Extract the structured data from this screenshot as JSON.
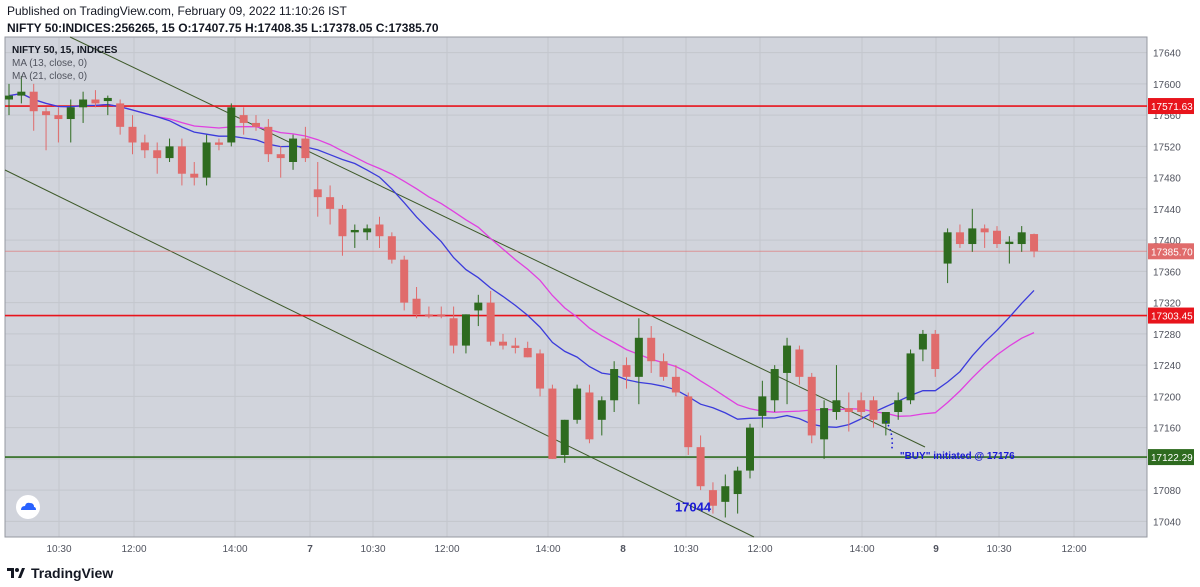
{
  "header": {
    "published": "Published on TradingView.com, February 09, 2022 11:10:26 IST",
    "symbol": "NIFTY 50:INDICES:256265, 15",
    "o_label": "O:",
    "o_value": "17407.75",
    "h_label": "H:",
    "h_value": "17408.35",
    "l_label": "L:",
    "l_value": "17378.05",
    "c_label": "C:",
    "c_value": "17385.70"
  },
  "legend": {
    "title": "NIFTY 50, 15, INDICES",
    "ma13": "MA (13, close, 0)",
    "ma21": "MA (21, close, 0)"
  },
  "footer": {
    "brand": "TradingView"
  },
  "colors": {
    "background": "#d1d4dc",
    "up": "#2e6b1f",
    "down": "#e06b6b",
    "ma13": "#3b3bdb",
    "ma21": "#e040e0",
    "hline_red": "#e8141c",
    "hline_green": "#2e6b1f",
    "channel": "#3e5a2a",
    "annotation": "#1a1ad6"
  },
  "chart_data": {
    "type": "candlestick",
    "title": "NIFTY 50, 15, INDICES",
    "ylim": [
      17020,
      17660
    ],
    "y_ticks": [
      17040,
      17080,
      17120,
      17160,
      17200,
      17240,
      17280,
      17320,
      17360,
      17400,
      17440,
      17480,
      17520,
      17560,
      17600,
      17640
    ],
    "x_ticks": [
      "10:30",
      "12:00",
      "14:00",
      "7",
      "10:30",
      "12:00",
      "14:00",
      "8",
      "10:30",
      "12:00",
      "14:00",
      "9",
      "10:30",
      "12:00"
    ],
    "grid": true,
    "horizontal_levels": [
      {
        "value": 17571.63,
        "label": "17571.63",
        "color": "#e8141c"
      },
      {
        "value": 17385.7,
        "label": "17385.70",
        "color": "#e06b6b"
      },
      {
        "value": 17303.45,
        "label": "17303.45",
        "color": "#e8141c"
      },
      {
        "value": 17122.29,
        "label": "17122.29",
        "color": "#2e6b1f"
      }
    ],
    "annotations": [
      {
        "text": "17044",
        "bar": 57,
        "price": 17044
      },
      {
        "text": "\"BUY\" initiated @ 17176",
        "bar": 71,
        "price": 17176
      }
    ],
    "candles": [
      [
        17580,
        17600,
        17560,
        17585
      ],
      [
        17585,
        17610,
        17575,
        17590
      ],
      [
        17590,
        17600,
        17540,
        17565
      ],
      [
        17565,
        17570,
        17515,
        17560
      ],
      [
        17560,
        17570,
        17525,
        17555
      ],
      [
        17555,
        17580,
        17525,
        17570
      ],
      [
        17570,
        17590,
        17550,
        17580
      ],
      [
        17580,
        17592,
        17570,
        17575
      ],
      [
        17578,
        17585,
        17560,
        17582
      ],
      [
        17575,
        17580,
        17535,
        17545
      ],
      [
        17545,
        17560,
        17510,
        17525
      ],
      [
        17525,
        17535,
        17505,
        17515
      ],
      [
        17515,
        17525,
        17485,
        17505
      ],
      [
        17505,
        17530,
        17500,
        17520
      ],
      [
        17520,
        17530,
        17470,
        17485
      ],
      [
        17485,
        17500,
        17470,
        17480
      ],
      [
        17480,
        17535,
        17470,
        17525
      ],
      [
        17525,
        17530,
        17515,
        17522
      ],
      [
        17525,
        17575,
        17520,
        17570
      ],
      [
        17560,
        17570,
        17535,
        17550
      ],
      [
        17550,
        17560,
        17540,
        17545
      ],
      [
        17545,
        17555,
        17500,
        17510
      ],
      [
        17510,
        17520,
        17480,
        17505
      ],
      [
        17500,
        17535,
        17490,
        17530
      ],
      [
        17530,
        17545,
        17500,
        17505
      ],
      [
        17465,
        17500,
        17430,
        17455
      ],
      [
        17455,
        17470,
        17420,
        17440
      ],
      [
        17440,
        17445,
        17380,
        17405
      ],
      [
        17410,
        17420,
        17390,
        17413
      ],
      [
        17410,
        17420,
        17400,
        17415
      ],
      [
        17420,
        17430,
        17390,
        17405
      ],
      [
        17405,
        17410,
        17370,
        17375
      ],
      [
        17375,
        17380,
        17310,
        17320
      ],
      [
        17325,
        17340,
        17300,
        17305
      ],
      [
        17305,
        17315,
        17300,
        17303
      ],
      [
        17305,
        17315,
        17300,
        17303
      ],
      [
        17300,
        17315,
        17255,
        17265
      ],
      [
        17265,
        17305,
        17255,
        17305
      ],
      [
        17310,
        17330,
        17290,
        17320
      ],
      [
        17320,
        17335,
        17265,
        17270
      ],
      [
        17270,
        17280,
        17260,
        17265
      ],
      [
        17265,
        17275,
        17255,
        17262
      ],
      [
        17262,
        17270,
        17250,
        17250
      ],
      [
        17255,
        17260,
        17200,
        17210
      ],
      [
        17210,
        17215,
        17120,
        17120
      ],
      [
        17125,
        17170,
        17115,
        17170
      ],
      [
        17170,
        17215,
        17165,
        17210
      ],
      [
        17205,
        17215,
        17140,
        17145
      ],
      [
        17170,
        17200,
        17150,
        17195
      ],
      [
        17195,
        17245,
        17180,
        17235
      ],
      [
        17240,
        17250,
        17210,
        17225
      ],
      [
        17225,
        17300,
        17190,
        17275
      ],
      [
        17275,
        17290,
        17230,
        17245
      ],
      [
        17245,
        17255,
        17220,
        17225
      ],
      [
        17225,
        17240,
        17200,
        17205
      ],
      [
        17200,
        17205,
        17125,
        17135
      ],
      [
        17135,
        17150,
        17080,
        17085
      ],
      [
        17080,
        17090,
        17050,
        17060
      ],
      [
        17065,
        17100,
        17045,
        17085
      ],
      [
        17075,
        17110,
        17050,
        17105
      ],
      [
        17105,
        17165,
        17095,
        17160
      ],
      [
        17175,
        17220,
        17160,
        17200
      ],
      [
        17195,
        17240,
        17180,
        17235
      ],
      [
        17230,
        17275,
        17190,
        17265
      ],
      [
        17260,
        17265,
        17215,
        17225
      ],
      [
        17225,
        17230,
        17140,
        17150
      ],
      [
        17145,
        17195,
        17120,
        17185
      ],
      [
        17180,
        17240,
        17170,
        17195
      ],
      [
        17185,
        17205,
        17155,
        17180
      ],
      [
        17195,
        17205,
        17170,
        17180
      ],
      [
        17195,
        17200,
        17160,
        17170
      ],
      [
        17165,
        17180,
        17150,
        17180
      ],
      [
        17180,
        17205,
        17170,
        17195
      ],
      [
        17195,
        17260,
        17190,
        17255
      ],
      [
        17260,
        17285,
        17245,
        17280
      ],
      [
        17280,
        17285,
        17225,
        17235
      ],
      [
        17370,
        17415,
        17345,
        17410
      ],
      [
        17410,
        17420,
        17390,
        17395
      ],
      [
        17395,
        17440,
        17385,
        17415
      ],
      [
        17415,
        17420,
        17390,
        17410
      ],
      [
        17412,
        17418,
        17390,
        17395
      ],
      [
        17395,
        17405,
        17370,
        17398
      ],
      [
        17395,
        17418,
        17385,
        17410
      ],
      [
        17407.75,
        17408.35,
        17378.05,
        17385.7
      ]
    ],
    "series": [
      {
        "name": "MA (13, close, 0)",
        "type": "line"
      },
      {
        "name": "MA (21, close, 0)",
        "type": "line"
      }
    ]
  }
}
